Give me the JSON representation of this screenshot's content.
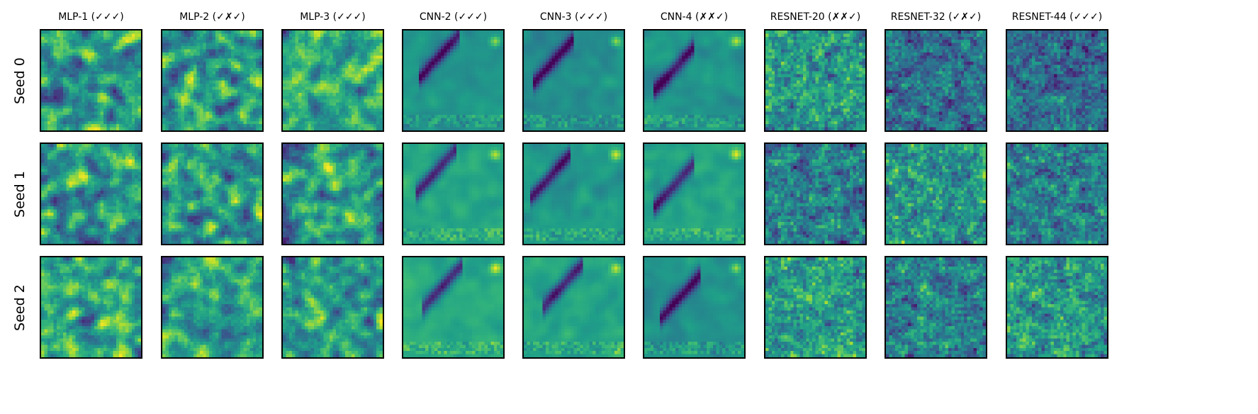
{
  "chart_data": {
    "type": "heatmap",
    "colormap": "viridis",
    "grid": false,
    "columns": [
      {
        "title": "MLP-1 (✓✓✓)",
        "style": "mlp"
      },
      {
        "title": "MLP-2 (✓✗✓)",
        "style": "mlp"
      },
      {
        "title": "MLP-3 (✓✓✓)",
        "style": "mlp"
      },
      {
        "title": "CNN-2 (✓✓✓)",
        "style": "cnn"
      },
      {
        "title": "CNN-3 (✓✓✓)",
        "style": "cnn"
      },
      {
        "title": "CNN-4 (✗✗✓)",
        "style": "cnn"
      },
      {
        "title": "RESNET-20 (✗✗✓)",
        "style": "resnet"
      },
      {
        "title": "RESNET-32 (✓✗✓)",
        "style": "resnet"
      },
      {
        "title": "RESNET-44 (✓✓✓)",
        "style": "resnet"
      }
    ],
    "rows": [
      {
        "label": "Seed 0"
      },
      {
        "label": "Seed 1"
      },
      {
        "label": "Seed 2"
      }
    ]
  }
}
